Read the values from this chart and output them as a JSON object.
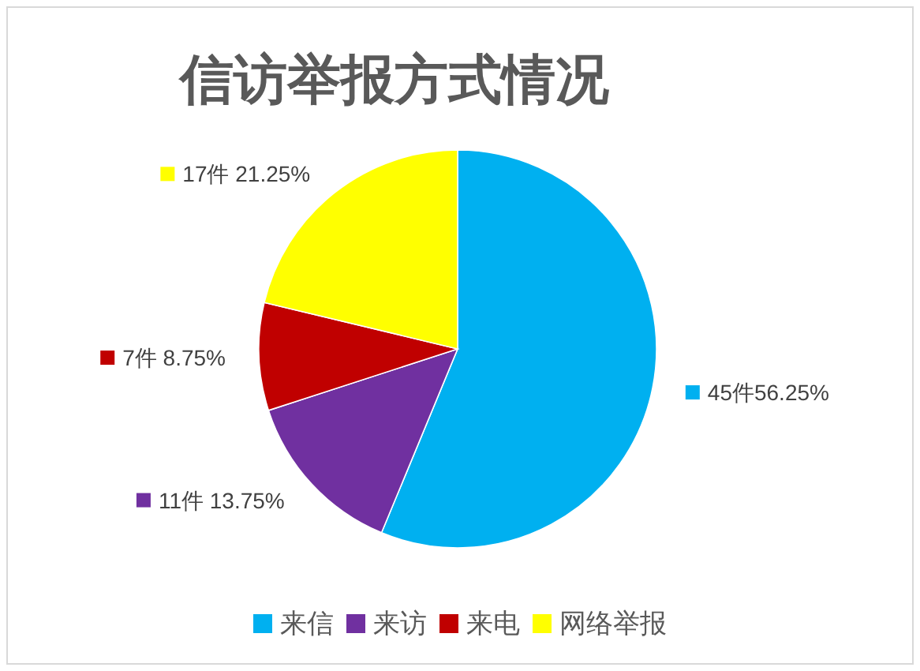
{
  "chart_data": {
    "type": "pie",
    "title": "信访举报方式情况",
    "categories": [
      "来信",
      "来访",
      "来电",
      "网络举报"
    ],
    "values": [
      45,
      11,
      7,
      17
    ],
    "colors": [
      "#00b0f0",
      "#7030a0",
      "#c00000",
      "#ffff00"
    ],
    "value_labels": [
      "45件56.25%",
      "11件 13.75%",
      "7件 8.75%",
      "17件 21.25%"
    ],
    "legend": "bottom"
  }
}
